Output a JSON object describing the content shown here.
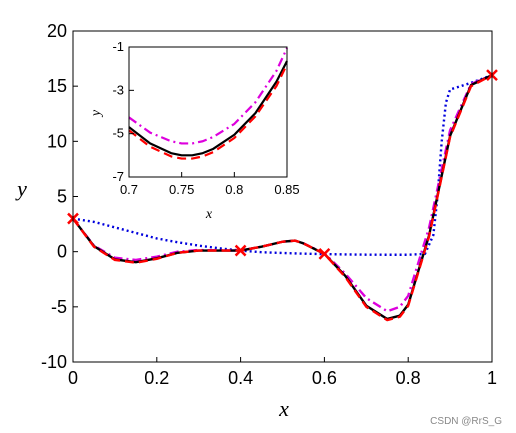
{
  "chart_data": [
    {
      "type": "line",
      "xlabel": "x",
      "ylabel": "y",
      "xlim": [
        0,
        1
      ],
      "ylim": [
        -10,
        20
      ],
      "xticks": [
        "0",
        "0.2",
        "0.4",
        "0.6",
        "0.8",
        "1"
      ],
      "yticks": [
        "-10",
        "-5",
        "0",
        "5",
        "10",
        "15",
        "20"
      ],
      "grid": false,
      "series": [
        {
          "style": "solid",
          "color": "#000000",
          "x": [
            0,
            0.05,
            0.1,
            0.15,
            0.2,
            0.25,
            0.3,
            0.35,
            0.4,
            0.45,
            0.5,
            0.53,
            0.55,
            0.6,
            0.65,
            0.7,
            0.75,
            0.78,
            0.8,
            0.85,
            0.9,
            0.95,
            1
          ],
          "y": [
            3,
            0.5,
            -0.7,
            -0.95,
            -0.6,
            -0.1,
            0.1,
            0.1,
            0.1,
            0.45,
            0.9,
            1.0,
            0.75,
            -0.2,
            -2.2,
            -4.9,
            -6.1,
            -5.8,
            -4.8,
            1.5,
            10.5,
            15.1,
            16
          ]
        },
        {
          "style": "dashed",
          "color": "#ff0000",
          "x": [
            0,
            0.05,
            0.1,
            0.15,
            0.2,
            0.25,
            0.3,
            0.35,
            0.4,
            0.45,
            0.5,
            0.53,
            0.55,
            0.6,
            0.65,
            0.7,
            0.75,
            0.78,
            0.8,
            0.85,
            0.9,
            0.95,
            1
          ],
          "y": [
            3,
            0.45,
            -0.75,
            -1.0,
            -0.65,
            -0.1,
            0.1,
            0.1,
            0.1,
            0.45,
            0.9,
            1.0,
            0.75,
            -0.2,
            -2.3,
            -5.0,
            -6.2,
            -5.9,
            -4.9,
            1.4,
            10.4,
            15.0,
            16
          ]
        },
        {
          "style": "dashdot",
          "color": "#dd00dd",
          "x": [
            0,
            0.05,
            0.1,
            0.15,
            0.2,
            0.25,
            0.3,
            0.35,
            0.4,
            0.45,
            0.5,
            0.53,
            0.55,
            0.6,
            0.65,
            0.7,
            0.75,
            0.78,
            0.8,
            0.85,
            0.9,
            0.95,
            1
          ],
          "y": [
            3,
            0.55,
            -0.55,
            -0.75,
            -0.45,
            0.0,
            0.15,
            0.12,
            0.1,
            0.45,
            0.9,
            1.0,
            0.75,
            -0.15,
            -2.0,
            -4.2,
            -5.4,
            -5.0,
            -4.0,
            2.2,
            11.0,
            15.2,
            16
          ]
        },
        {
          "style": "dotted",
          "color": "#0000dd",
          "x": [
            0,
            0.05,
            0.1,
            0.15,
            0.2,
            0.25,
            0.3,
            0.35,
            0.4,
            0.45,
            0.5,
            0.55,
            0.6,
            0.65,
            0.7,
            0.75,
            0.8,
            0.84,
            0.86,
            0.87,
            0.88,
            0.89,
            0.9,
            0.95,
            1
          ],
          "y": [
            3,
            2.7,
            2.2,
            1.7,
            1.2,
            0.85,
            0.55,
            0.3,
            0.1,
            -0.05,
            -0.12,
            -0.18,
            -0.22,
            -0.25,
            -0.27,
            -0.28,
            -0.28,
            -0.2,
            1.5,
            5,
            10,
            13.5,
            14.7,
            15.3,
            16
          ]
        }
      ],
      "markers": {
        "symbol": "x",
        "color": "#ff0000",
        "points": [
          [
            0,
            3
          ],
          [
            0.4,
            0.1
          ],
          [
            0.6,
            -0.2
          ],
          [
            1,
            16
          ]
        ]
      }
    },
    {
      "type": "line",
      "xlabel": "x",
      "ylabel": "y",
      "xlim": [
        0.7,
        0.85
      ],
      "ylim": [
        -7,
        -1
      ],
      "xticks": [
        "0.7",
        "0.75",
        "0.8",
        "0.85"
      ],
      "yticks": [
        "-1",
        "-3",
        "-5",
        "-7"
      ],
      "series": [
        {
          "style": "solid",
          "color": "#000000",
          "x": [
            0.7,
            0.72,
            0.74,
            0.75,
            0.76,
            0.77,
            0.78,
            0.8,
            0.82,
            0.84,
            0.85
          ],
          "y": [
            -4.7,
            -5.45,
            -5.9,
            -6.0,
            -6.0,
            -5.9,
            -5.7,
            -5.05,
            -4.05,
            -2.6,
            -1.65
          ]
        },
        {
          "style": "dashed",
          "color": "#ff0000",
          "x": [
            0.7,
            0.72,
            0.74,
            0.75,
            0.76,
            0.77,
            0.78,
            0.8,
            0.82,
            0.84,
            0.85
          ],
          "y": [
            -4.85,
            -5.6,
            -6.05,
            -6.15,
            -6.15,
            -6.05,
            -5.85,
            -5.2,
            -4.2,
            -2.8,
            -1.8
          ]
        },
        {
          "style": "dashdot",
          "color": "#dd00dd",
          "x": [
            0.7,
            0.72,
            0.74,
            0.75,
            0.76,
            0.77,
            0.78,
            0.8,
            0.82,
            0.84,
            0.85
          ],
          "y": [
            -4.25,
            -4.95,
            -5.35,
            -5.45,
            -5.45,
            -5.35,
            -5.15,
            -4.55,
            -3.55,
            -2.1,
            -1.05
          ]
        }
      ]
    }
  ],
  "watermark": "CSDN @RrS_G"
}
